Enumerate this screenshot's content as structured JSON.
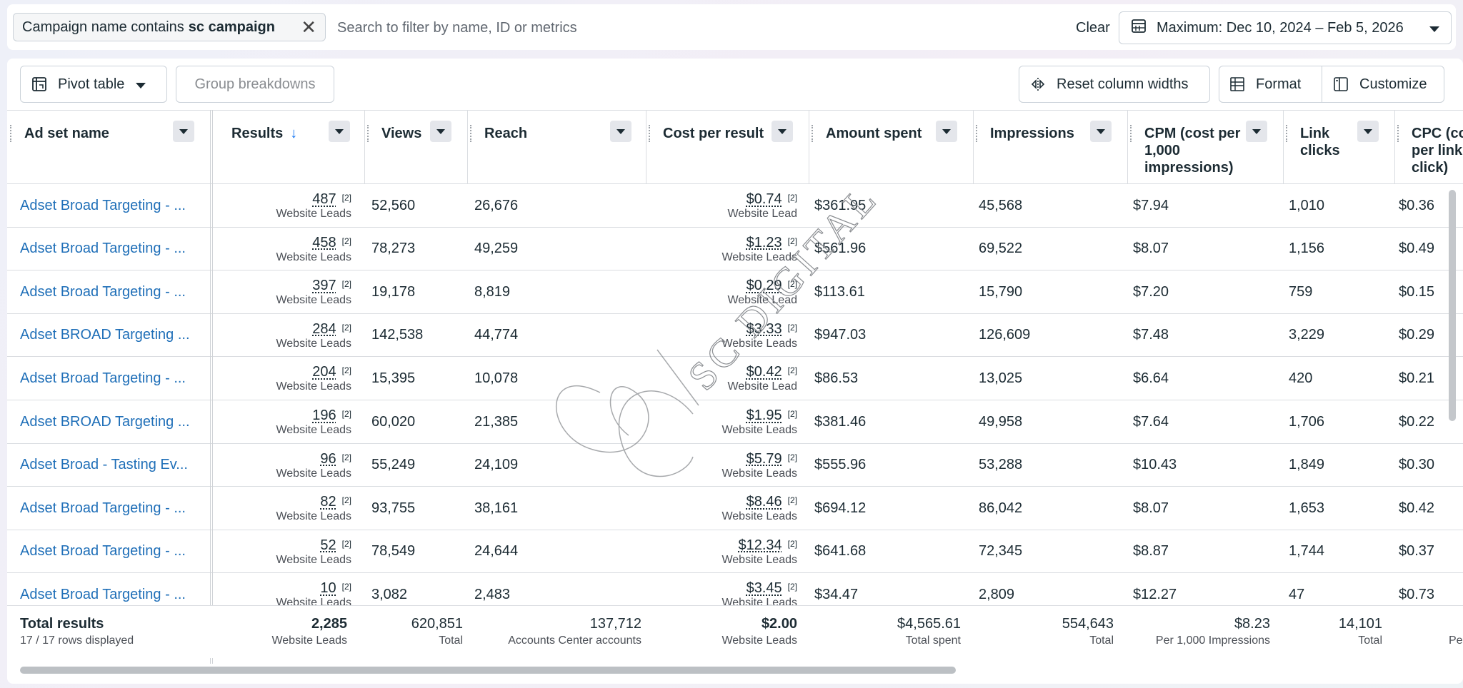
{
  "filter": {
    "chip_prefix": "Campaign name contains",
    "chip_value": "sc campaign",
    "search_placeholder": "Search to filter by name, ID or metrics",
    "clear": "Clear",
    "date_range": "Maximum: Dec 10, 2024 – Feb 5, 2026"
  },
  "toolbar": {
    "pivot": "Pivot table",
    "group": "Group breakdowns",
    "reset": "Reset column widths",
    "format": "Format",
    "customize": "Customize"
  },
  "columns": {
    "name": "Ad set name",
    "results": "Results",
    "views": "Views",
    "reach": "Reach",
    "cpr": "Cost per result",
    "spent": "Amount spent",
    "impressions": "Impressions",
    "cpm_1": "CPM (cost per",
    "cpm_2": "1,000",
    "cpm_3": "impressions)",
    "link_1": "Link",
    "link_2": "clicks",
    "cpc_1": "CPC (co",
    "cpc_2": "per link",
    "cpc_3": "click)"
  },
  "footnote": "[2]",
  "rows": [
    {
      "name": "Adset Broad Targeting - ...",
      "results": "487",
      "results_sub": "Website Leads",
      "views": "52,560",
      "reach": "26,676",
      "cpr": "$0.74",
      "cpr_sub": "Website Lead",
      "spent": "$361.95",
      "impressions": "45,568",
      "cpm": "$7.94",
      "clicks": "1,010",
      "cpc": "$0.36"
    },
    {
      "name": "Adset Broad Targeting - ...",
      "results": "458",
      "results_sub": "Website Leads",
      "views": "78,273",
      "reach": "49,259",
      "cpr": "$1.23",
      "cpr_sub": "Website Leads",
      "spent": "$561.96",
      "impressions": "69,522",
      "cpm": "$8.07",
      "clicks": "1,156",
      "cpc": "$0.49"
    },
    {
      "name": "Adset Broad Targeting - ...",
      "results": "397",
      "results_sub": "Website Leads",
      "views": "19,178",
      "reach": "8,819",
      "cpr": "$0.29",
      "cpr_sub": "Website Lead",
      "spent": "$113.61",
      "impressions": "15,790",
      "cpm": "$7.20",
      "clicks": "759",
      "cpc": "$0.15"
    },
    {
      "name": "Adset BROAD Targeting ...",
      "results": "284",
      "results_sub": "Website Leads",
      "views": "142,538",
      "reach": "44,774",
      "cpr": "$3.33",
      "cpr_sub": "Website Leads",
      "spent": "$947.03",
      "impressions": "126,609",
      "cpm": "$7.48",
      "clicks": "3,229",
      "cpc": "$0.29"
    },
    {
      "name": "Adset Broad Targeting - ...",
      "results": "204",
      "results_sub": "Website Leads",
      "views": "15,395",
      "reach": "10,078",
      "cpr": "$0.42",
      "cpr_sub": "Website Lead",
      "spent": "$86.53",
      "impressions": "13,025",
      "cpm": "$6.64",
      "clicks": "420",
      "cpc": "$0.21"
    },
    {
      "name": "Adset BROAD Targeting ...",
      "results": "196",
      "results_sub": "Website Leads",
      "views": "60,020",
      "reach": "21,385",
      "cpr": "$1.95",
      "cpr_sub": "Website Leads",
      "spent": "$381.46",
      "impressions": "49,958",
      "cpm": "$7.64",
      "clicks": "1,706",
      "cpc": "$0.22"
    },
    {
      "name": "Adset Broad - Tasting Ev...",
      "results": "96",
      "results_sub": "Website Leads",
      "views": "55,249",
      "reach": "24,109",
      "cpr": "$5.79",
      "cpr_sub": "Website Leads",
      "spent": "$555.96",
      "impressions": "53,288",
      "cpm": "$10.43",
      "clicks": "1,849",
      "cpc": "$0.30"
    },
    {
      "name": "Adset Broad Targeting - ...",
      "results": "82",
      "results_sub": "Website Leads",
      "views": "93,755",
      "reach": "38,161",
      "cpr": "$8.46",
      "cpr_sub": "Website Leads",
      "spent": "$694.12",
      "impressions": "86,042",
      "cpm": "$8.07",
      "clicks": "1,653",
      "cpc": "$0.42"
    },
    {
      "name": "Adset Broad Targeting - ...",
      "results": "52",
      "results_sub": "Website Leads",
      "views": "78,549",
      "reach": "24,644",
      "cpr": "$12.34",
      "cpr_sub": "Website Leads",
      "spent": "$641.68",
      "impressions": "72,345",
      "cpm": "$8.87",
      "clicks": "1,744",
      "cpc": "$0.37"
    },
    {
      "name": "Adset Broad Targeting - ...",
      "results": "10",
      "results_sub": "Website Leads",
      "views": "3,082",
      "reach": "2,483",
      "cpr": "$3.45",
      "cpr_sub": "Website Leads",
      "spent": "$34.47",
      "impressions": "2,809",
      "cpm": "$12.27",
      "clicks": "47",
      "cpc": "$0.73"
    }
  ],
  "totals": {
    "label": "Total results",
    "rows_displayed": "17 / 17 rows displayed",
    "results": "2,285",
    "results_sub": "Website Leads",
    "views": "620,851",
    "views_sub": "Total",
    "reach": "137,712",
    "reach_sub": "Accounts Center accounts",
    "cpr": "$2.00",
    "cpr_sub": "Website Leads",
    "spent": "$4,565.61",
    "spent_sub": "Total spent",
    "impressions": "554,643",
    "impressions_sub": "Total",
    "cpm": "$8.23",
    "cpm_sub": "Per 1,000 Impressions",
    "clicks": "14,101",
    "clicks_sub": "Total",
    "cpc_sub": "Pe"
  },
  "watermark": "SC DIGITAL",
  "icons": [
    "close-icon",
    "calendar-icon",
    "chevron-down-icon",
    "pivot-table-icon",
    "reset-columns-icon",
    "format-icon",
    "customize-icon",
    "sort-down-icon"
  ]
}
